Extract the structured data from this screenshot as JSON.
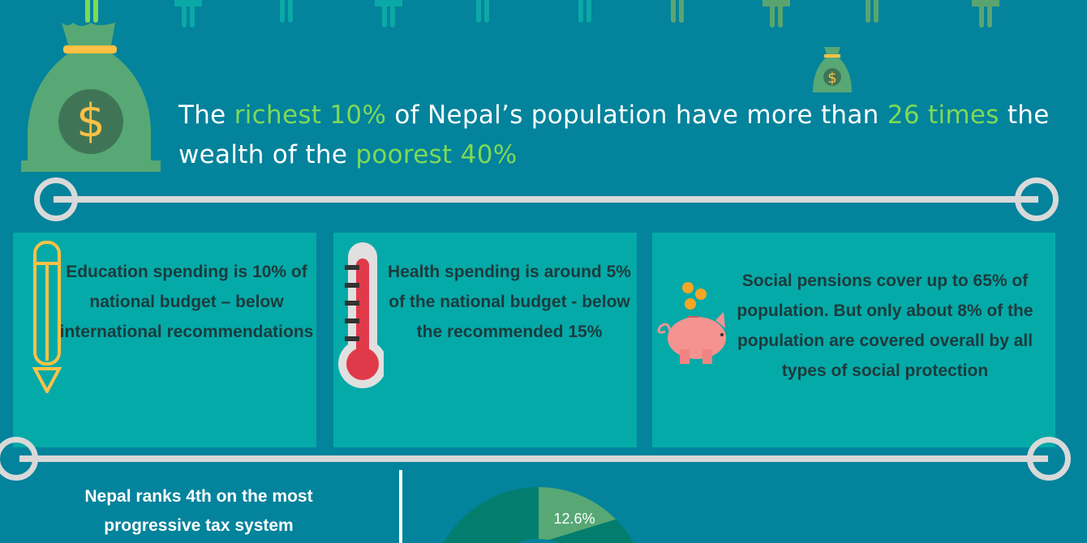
{
  "pictogram": {
    "colors": [
      "#7ed957",
      "#0aa9a7",
      "#0aa9a7",
      "#0aa9a7",
      "#0aa9a7",
      "#0aa9a7",
      "#5aa56f",
      "#5aa56f",
      "#5aa56f",
      "#5aa56f"
    ]
  },
  "headline": {
    "p1": "The ",
    "h1": "richest 10%",
    "p2": " of Nepal’s population have more than ",
    "h2": "26 times",
    "p3": " the wealth of the ",
    "h3": "poorest 40%"
  },
  "icons": {
    "big_bag": "money-bag-icon",
    "small_bag": "money-bag-icon"
  },
  "cards": [
    {
      "text": "Education spending is 10% of national budget – below international recommendations",
      "icon": "pencil-icon"
    },
    {
      "text": "Health spending is around 5% of the national budget - below the recommended 15%",
      "icon": "thermometer-icon"
    },
    {
      "text": "Social pensions cover up to 65% of population. But only about 8% of the population are covered overall by all types of social protection",
      "icon": "piggy-bank-icon"
    }
  ],
  "tax": {
    "text": "Nepal ranks 4th on the most progressive tax system"
  },
  "colors": {
    "background": "#03839c",
    "card": "#04aaa8",
    "highlight": "#7ed957",
    "donut_dark": "#037d6e",
    "donut_light": "#57a875"
  },
  "donut": {
    "segments": [
      {
        "label": "12.6%",
        "value": 12.6
      }
    ]
  }
}
